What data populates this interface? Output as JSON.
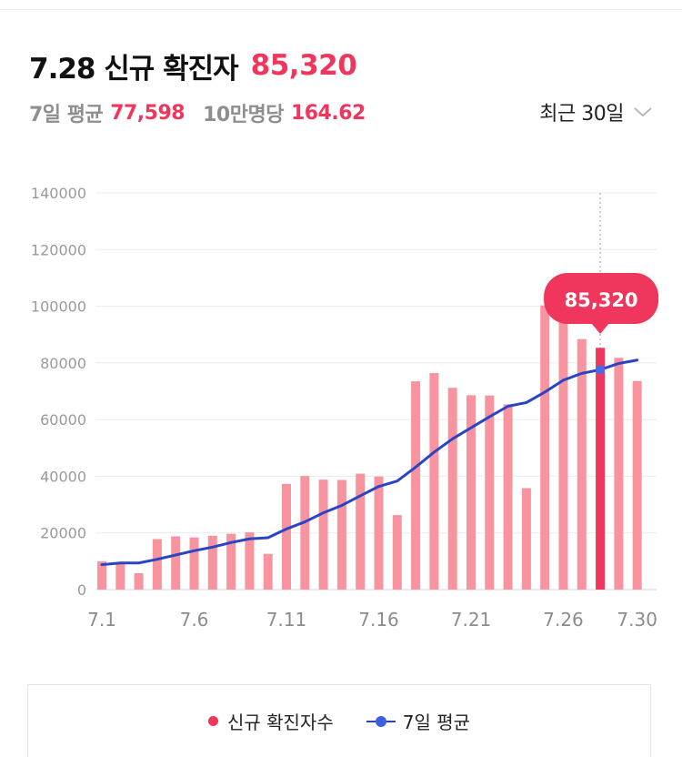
{
  "header": {
    "date_title": "7.28 신규 확진자",
    "count": "85,320"
  },
  "stats": {
    "avg_label": "7일 평균",
    "avg_value": "77,598",
    "per100k_label": "10만명당",
    "per100k_value": "164.62"
  },
  "period_select": {
    "label": "최근 30일",
    "icon": "chevron-down-icon"
  },
  "colors": {
    "bar": "#f8949f",
    "bar_highlight": "#f0365d",
    "line": "#2b44c5",
    "accent": "#f0365d"
  },
  "chart_data": {
    "type": "bar",
    "title": "",
    "xlabel": "",
    "ylabel": "",
    "x": [
      "7.1",
      "7.2",
      "7.3",
      "7.4",
      "7.5",
      "7.6",
      "7.7",
      "7.8",
      "7.9",
      "7.10",
      "7.11",
      "7.12",
      "7.13",
      "7.14",
      "7.15",
      "7.16",
      "7.17",
      "7.18",
      "7.19",
      "7.20",
      "7.21",
      "7.22",
      "7.23",
      "7.24",
      "7.25",
      "7.26",
      "7.27",
      "7.28",
      "7.29",
      "7.30"
    ],
    "x_tick_labels": [
      "7.1",
      "7.6",
      "7.11",
      "7.16",
      "7.21",
      "7.26",
      "7.30"
    ],
    "y_ticks": [
      "140000",
      "120000",
      "100000",
      "80000",
      "60000",
      "40000",
      "20000",
      "0"
    ],
    "ylim": [
      0,
      140000
    ],
    "grid": true,
    "series": [
      {
        "name": "신규 확진자수",
        "type": "bar",
        "values": [
          10000,
          9200,
          5800,
          17800,
          18800,
          18400,
          19000,
          19700,
          20200,
          12600,
          37300,
          40100,
          38800,
          38700,
          40900,
          39900,
          26300,
          73500,
          76400,
          71200,
          68600,
          68500,
          65400,
          35800,
          100300,
          99300,
          88400,
          85320,
          81800,
          73600
        ]
      },
      {
        "name": "7일 평균",
        "type": "line",
        "values": [
          8800,
          9400,
          9400,
          10700,
          12200,
          13700,
          15000,
          16600,
          17900,
          18300,
          21400,
          23900,
          27100,
          29700,
          33100,
          36400,
          38300,
          43200,
          48500,
          53200,
          57100,
          61000,
          64700,
          66000,
          69700,
          73900,
          76300,
          77598,
          79800,
          81000
        ]
      }
    ],
    "highlight": {
      "x": "7.28",
      "value": "85,320"
    }
  },
  "legend": {
    "cases_label": "신규 확진자수",
    "avg_label": "7일 평균"
  }
}
